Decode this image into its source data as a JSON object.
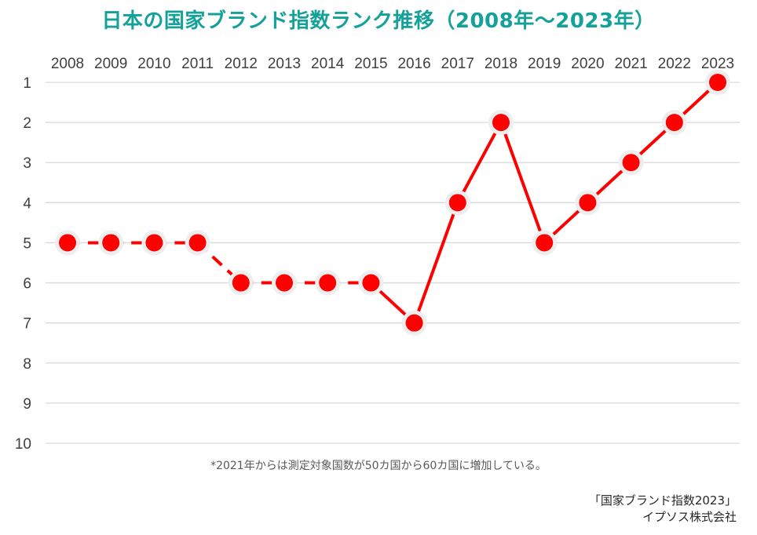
{
  "chart_data": {
    "type": "line",
    "title": "日本の国家ブランド指数ランク推移（2008年～2023年）",
    "x": [
      "2008",
      "2009",
      "2010",
      "2011",
      "2012",
      "2013",
      "2014",
      "2015",
      "2016",
      "2017",
      "2018",
      "2019",
      "2020",
      "2021",
      "2022",
      "2023"
    ],
    "series": [
      {
        "values": [
          5,
          5,
          5,
          5,
          6,
          6,
          6,
          6,
          7,
          4,
          2,
          5,
          4,
          3,
          2,
          1
        ]
      }
    ],
    "y_ticks": [
      "1",
      "2",
      "3",
      "4",
      "5",
      "6",
      "7",
      "8",
      "9",
      "10"
    ],
    "ylim": [
      1,
      10
    ],
    "y_inverted": true,
    "x_axis_position": "top",
    "grid": true,
    "dashed_segment_years": [
      "2008",
      "2015"
    ],
    "line_color": "#ff0000",
    "marker_color": "#ff0000",
    "marker_halo_color": "#eeeeee",
    "title_color": "#13a19a"
  },
  "note": "*2021年からは測定対象国数が50カ国から60カ国に増加している。",
  "source_line1": "「国家ブランド指数2023」",
  "source_line2": "イプソス株式会社"
}
